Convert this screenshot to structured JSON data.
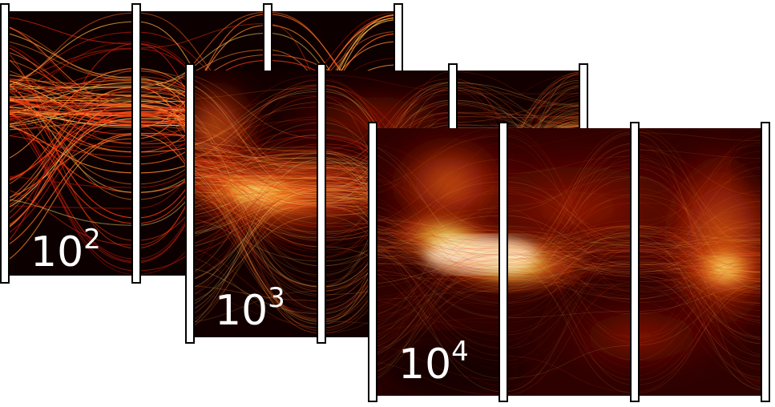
{
  "chart_data": {
    "type": "parallel-coordinates density",
    "colormap": "hot",
    "panels": [
      {
        "base": "10",
        "exponent": "2",
        "axes": 4,
        "density": "sparse"
      },
      {
        "base": "10",
        "exponent": "3",
        "axes": 4,
        "density": "medium"
      },
      {
        "base": "10",
        "exponent": "4",
        "axes": 4,
        "density": "dense"
      }
    ]
  }
}
